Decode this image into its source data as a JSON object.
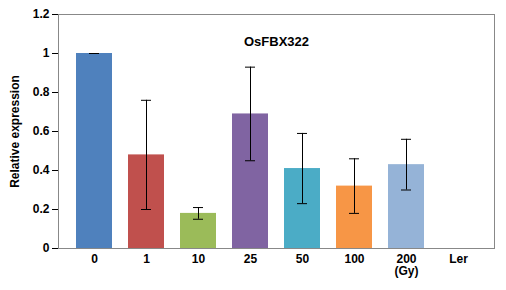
{
  "chart_data": {
    "type": "bar",
    "title": "OsFBX322",
    "y_label": "Relative expression",
    "categories": [
      "0",
      "1",
      "10",
      "25",
      "50",
      "100",
      "200\n(Gy)",
      "Ler"
    ],
    "values": [
      1.0,
      0.48,
      0.18,
      0.69,
      0.41,
      0.32,
      0.43,
      null
    ],
    "errors": [
      0.0,
      0.28,
      0.03,
      0.24,
      0.18,
      0.14,
      0.13,
      null
    ],
    "colors": [
      "#4f81bd",
      "#c0504d",
      "#9bbb59",
      "#8064a2",
      "#4bacc6",
      "#f79646",
      "#95b3d7",
      "#4f81bd"
    ],
    "ylim": [
      0,
      1.2
    ],
    "yticks": [
      0,
      0.2,
      0.4,
      0.6,
      0.8,
      1,
      1.2
    ],
    "grid": false
  }
}
